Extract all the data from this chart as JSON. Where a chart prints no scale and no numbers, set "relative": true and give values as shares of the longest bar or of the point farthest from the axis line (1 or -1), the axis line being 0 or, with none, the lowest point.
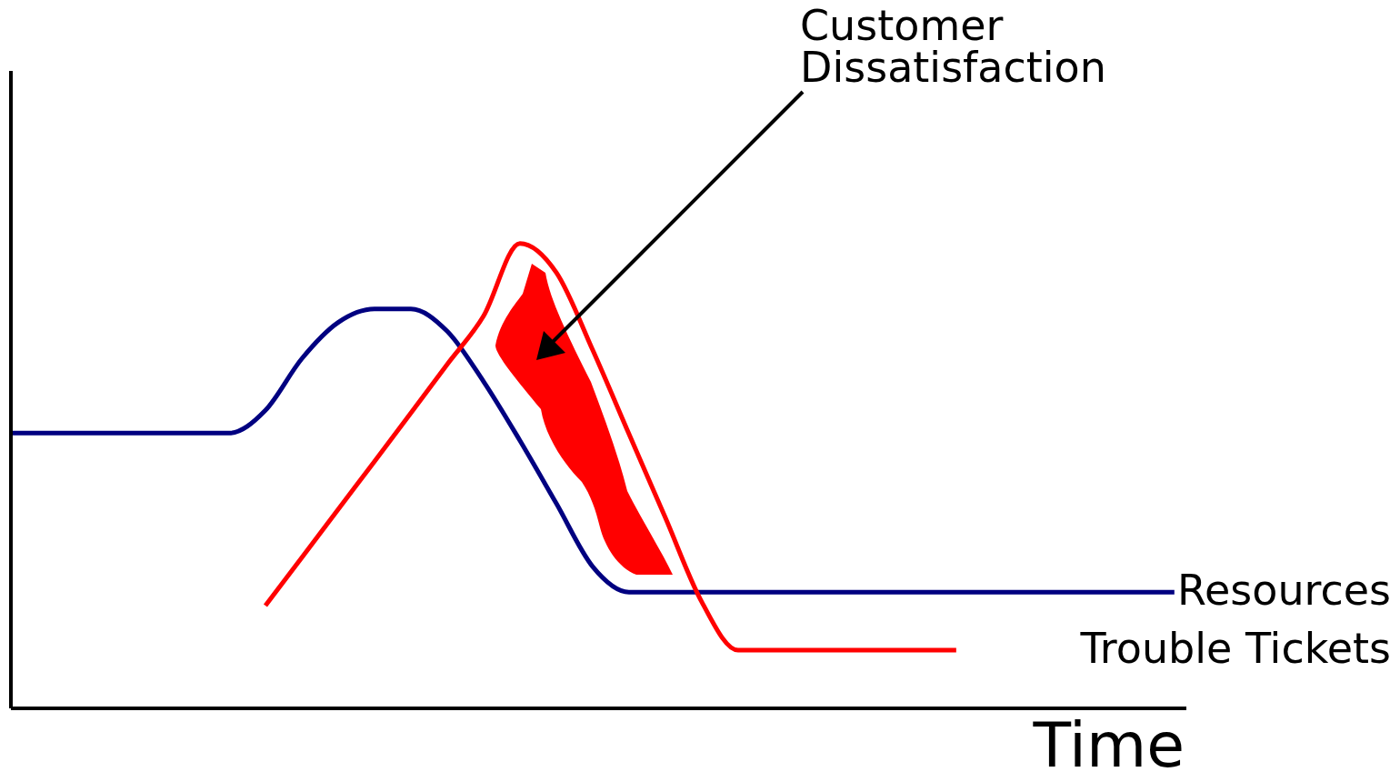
{
  "chart_data": {
    "type": "line",
    "relative": true,
    "xlabel": "Time",
    "annotations": [
      "Customer Dissatisfaction"
    ],
    "categories": [
      null,
      null,
      null,
      null,
      null,
      null,
      null,
      null,
      null,
      null,
      null,
      null,
      null,
      null,
      null,
      null,
      null,
      null,
      null,
      null,
      null,
      null,
      null,
      null,
      null,
      null,
      null,
      null,
      null,
      null,
      null,
      null,
      null
    ],
    "series": [
      {
        "name": "Resources",
        "color": "#000080",
        "values": [
          0.592,
          0.592,
          0.592,
          0.592,
          0.592,
          0.592,
          0.592,
          0.641,
          0.752,
          0.83,
          0.859,
          0.859,
          0.811,
          0.703,
          0.576,
          0.441,
          0.305,
          0.25,
          0.25,
          0.25,
          0.25,
          0.25,
          0.25,
          0.25,
          0.25,
          0.25,
          0.25,
          0.25,
          0.25,
          0.25,
          0.25,
          0.25,
          0.25
        ]
      },
      {
        "name": "Trouble Tickets",
        "color": "#ff0000",
        "values": [
          null,
          null,
          null,
          null,
          null,
          null,
          null,
          0.221,
          0.324,
          0.428,
          0.531,
          0.635,
          0.74,
          0.844,
          1,
          0.9375,
          0.771,
          0.59,
          0.41,
          0.229,
          0.125,
          0.125,
          0.125,
          0.125,
          0.125,
          0.125,
          0.125,
          null,
          null,
          null,
          null,
          null,
          null
        ]
      }
    ],
    "grid": false,
    "legend": false,
    "marker": "none",
    "line_style": "solid"
  }
}
